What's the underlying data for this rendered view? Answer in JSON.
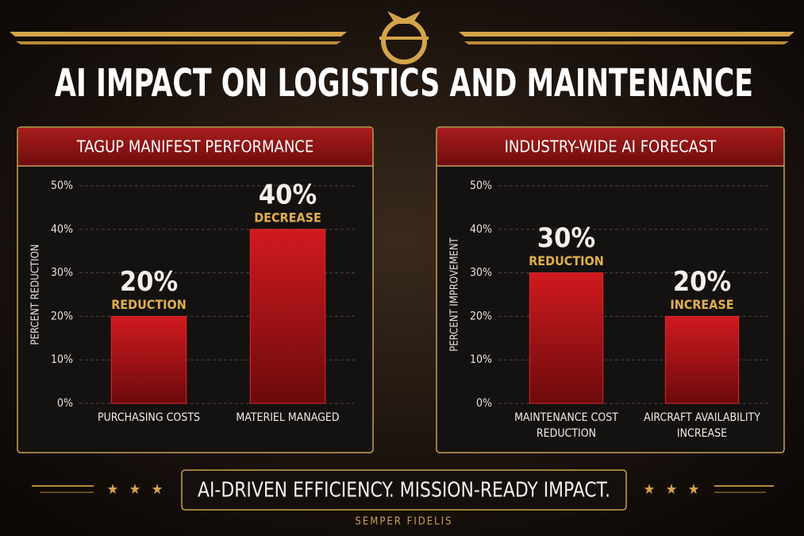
{
  "title": "AI IMPACT ON LOGISTICS AND MAINTENANCE",
  "chart_data": [
    {
      "type": "bar",
      "title": "TAGUP MANIFEST PERFORMANCE",
      "y_label": "PERCENT REDUCTION",
      "categories": [
        "PURCHASING COSTS",
        "MATERIEL MANAGED"
      ],
      "values": [
        20,
        40
      ],
      "value_labels": [
        "20%",
        "40%"
      ],
      "annotations": [
        "REDUCTION",
        "DECREASE"
      ],
      "color": "#c4161c",
      "ylim": [
        0,
        50
      ],
      "yticks": [
        {
          "value": 0,
          "label": "0%"
        },
        {
          "value": 10,
          "label": "10%"
        },
        {
          "value": 20,
          "label": "20%"
        },
        {
          "value": 30,
          "label": "30%"
        },
        {
          "value": 40,
          "label": "40%"
        },
        {
          "value": 50,
          "label": "50%"
        }
      ],
      "grid": true
    },
    {
      "type": "bar",
      "title": "INDUSTRY-WIDE AI FORECAST",
      "y_label": "PERCENT IMPROVEMENT",
      "categories": [
        "MAINTENANCE COST REDUCTION",
        "AIRCRAFT AVAILABILITY INCREASE"
      ],
      "values": [
        30,
        20
      ],
      "value_labels": [
        "30%",
        "20%"
      ],
      "annotations": [
        "REDUCTION",
        "INCREASE"
      ],
      "color": "#c4161c",
      "ylim": [
        0,
        50
      ],
      "yticks": [
        {
          "value": 0,
          "label": "0%"
        },
        {
          "value": 10,
          "label": "10%"
        },
        {
          "value": 20,
          "label": "20%"
        },
        {
          "value": 30,
          "label": "30%"
        },
        {
          "value": 40,
          "label": "40%"
        },
        {
          "value": 50,
          "label": "50%"
        }
      ],
      "grid": true
    }
  ],
  "tagline": "AI-DRIVEN EFFICIENCY. MISSION-READY IMPACT.",
  "footer": "SEMPER FIDELIS"
}
